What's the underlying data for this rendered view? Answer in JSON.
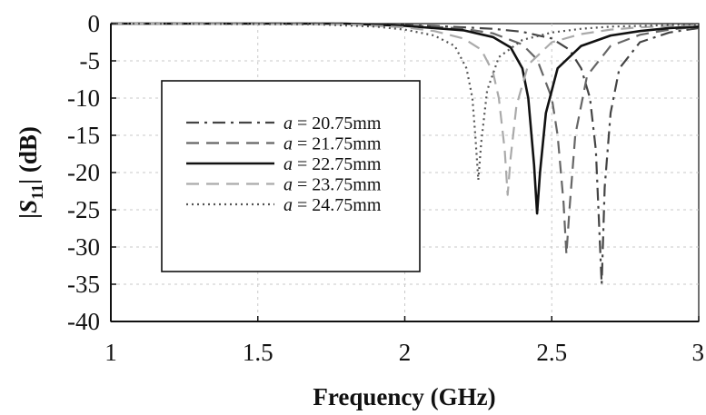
{
  "chart_data": {
    "type": "line",
    "title": "",
    "xlabel": "Frequency (GHz)",
    "ylabel": "|S11| (dB)",
    "ylabel_parts": {
      "prefix": "|",
      "symbol": "S",
      "subscript": "11",
      "suffix": "| (dB)"
    },
    "xlim": [
      1,
      3
    ],
    "ylim": [
      -40,
      0
    ],
    "x_ticks": [
      1,
      1.5,
      2,
      2.5,
      3
    ],
    "x_tick_labels": [
      "1",
      "1.5",
      "2",
      "2.5",
      "3"
    ],
    "y_ticks": [
      0,
      -5,
      -10,
      -15,
      -20,
      -25,
      -30,
      -35,
      -40
    ],
    "y_tick_labels": [
      "0",
      "-5",
      "-10",
      "-15",
      "-20",
      "-25",
      "-30",
      "-35",
      "-40"
    ],
    "grid": true,
    "legend_position": "left",
    "series": [
      {
        "name": "a = 20.75mm",
        "label_var": "a",
        "label_value": "= 20.75mm",
        "color": "#444444",
        "dash": "dashdot",
        "x": [
          1.0,
          1.8,
          2.1,
          2.3,
          2.4,
          2.5,
          2.56,
          2.6,
          2.63,
          2.65,
          2.66,
          2.67,
          2.68,
          2.7,
          2.73,
          2.8,
          2.9,
          3.0
        ],
        "y": [
          0,
          0,
          -0.3,
          -0.7,
          -1.1,
          -2.0,
          -3.5,
          -6.0,
          -10.0,
          -17.0,
          -26.0,
          -35.0,
          -22.0,
          -12.0,
          -6.0,
          -2.5,
          -1.2,
          -0.6
        ]
      },
      {
        "name": "a = 21.75mm",
        "label_var": "a",
        "label_value": "= 21.75mm",
        "color": "#666666",
        "dash": "dashed",
        "x": [
          1.0,
          1.8,
          2.1,
          2.2,
          2.3,
          2.4,
          2.45,
          2.5,
          2.52,
          2.54,
          2.55,
          2.56,
          2.58,
          2.62,
          2.7,
          2.8,
          2.9,
          3.0
        ],
        "y": [
          0,
          0,
          -0.4,
          -0.7,
          -1.3,
          -2.8,
          -4.8,
          -10.0,
          -15.0,
          -24.0,
          -31.0,
          -25.0,
          -15.0,
          -7.0,
          -3.0,
          -1.5,
          -0.8,
          -0.4
        ]
      },
      {
        "name": "a = 22.75mm",
        "label_var": "a",
        "label_value": "= 22.75mm",
        "color": "#111111",
        "dash": "solid",
        "x": [
          1.0,
          1.8,
          2.0,
          2.2,
          2.3,
          2.36,
          2.4,
          2.42,
          2.44,
          2.45,
          2.46,
          2.48,
          2.52,
          2.6,
          2.7,
          2.8,
          2.9,
          3.0
        ],
        "y": [
          0,
          0,
          -0.3,
          -0.9,
          -1.8,
          -3.2,
          -6.0,
          -10.0,
          -19.0,
          -25.5,
          -20.0,
          -12.0,
          -6.0,
          -3.0,
          -1.6,
          -1.0,
          -0.6,
          -0.4
        ]
      },
      {
        "name": "a = 23.75mm",
        "label_var": "a",
        "label_value": "= 23.75mm",
        "color": "#aaaaaa",
        "dash": "dashed",
        "x": [
          1.0,
          1.8,
          2.0,
          2.1,
          2.2,
          2.26,
          2.3,
          2.32,
          2.34,
          2.35,
          2.36,
          2.38,
          2.42,
          2.5,
          2.6,
          2.7,
          2.8,
          2.9,
          3.0
        ],
        "y": [
          0,
          -0.1,
          -0.5,
          -1.0,
          -2.0,
          -3.5,
          -6.5,
          -10.0,
          -17.0,
          -23.0,
          -18.0,
          -11.0,
          -5.5,
          -2.5,
          -1.4,
          -0.8,
          -0.5,
          -0.3,
          -0.2
        ]
      },
      {
        "name": "a = 24.75mm",
        "label_var": "a",
        "label_value": "= 24.75mm",
        "color": "#555555",
        "dash": "dotted",
        "x": [
          1.0,
          1.7,
          1.9,
          2.0,
          2.1,
          2.17,
          2.21,
          2.23,
          2.24,
          2.25,
          2.26,
          2.28,
          2.32,
          2.4,
          2.5,
          2.6,
          2.7,
          2.8,
          2.9,
          3.0
        ],
        "y": [
          0,
          -0.1,
          -0.4,
          -0.8,
          -1.6,
          -3.0,
          -6.0,
          -10.0,
          -15.0,
          -21.0,
          -16.0,
          -9.0,
          -4.5,
          -2.2,
          -1.2,
          -0.7,
          -0.4,
          -0.3,
          -0.2,
          -0.1
        ]
      }
    ]
  }
}
